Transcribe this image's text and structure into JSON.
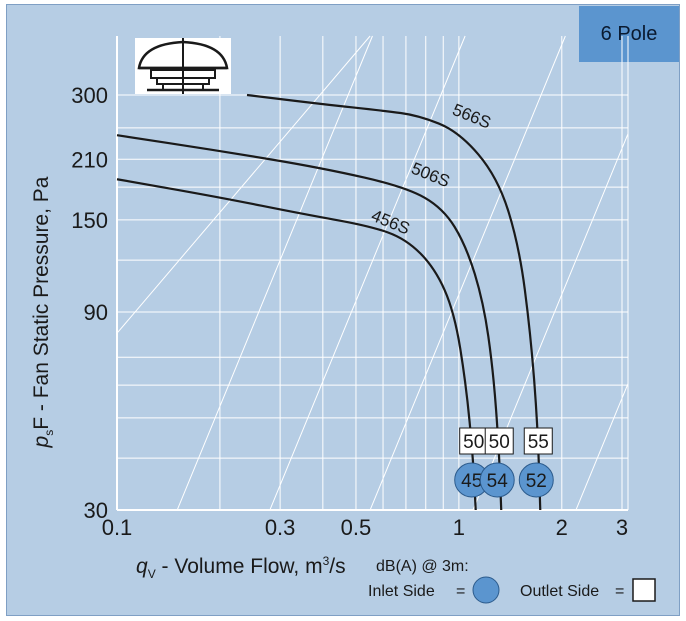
{
  "badge": "6 Pole",
  "chart_data": {
    "type": "line",
    "title": "",
    "xlabel": "q_V - Volume Flow, m³/s",
    "ylabel": "p_sF - Fan Static Pressure, Pa",
    "x_scale": "log",
    "y_scale": "log",
    "xlim": [
      0.1,
      3.3
    ],
    "ylim": [
      30,
      450
    ],
    "x_ticks": [
      "0.1",
      "0.3",
      "0.5",
      "1",
      "2",
      "3"
    ],
    "y_ticks": [
      "30",
      "90",
      "150",
      "210",
      "300"
    ],
    "series": [
      {
        "name": "456S",
        "inlet_dba": "45",
        "outlet_dba": "50",
        "x": [
          0.1,
          0.2,
          0.35,
          0.55,
          0.7,
          0.85,
          0.97,
          1.05,
          1.1,
          1.12
        ],
        "y": [
          188,
          170,
          155,
          145,
          135,
          115,
          90,
          60,
          40,
          30
        ]
      },
      {
        "name": "506S",
        "inlet_dba": "54",
        "outlet_dba": "50",
        "x": [
          0.1,
          0.2,
          0.4,
          0.7,
          0.9,
          1.05,
          1.18,
          1.26,
          1.31,
          1.33
        ],
        "y": [
          240,
          220,
          200,
          180,
          160,
          130,
          95,
          65,
          42,
          30
        ]
      },
      {
        "name": "566S",
        "inlet_dba": "52",
        "outlet_dba": "55",
        "x": [
          0.24,
          0.4,
          0.6,
          0.76,
          1.0,
          1.3,
          1.5,
          1.62,
          1.7,
          1.73
        ],
        "y": [
          300,
          285,
          275,
          268,
          245,
          190,
          130,
          80,
          48,
          30
        ]
      }
    ],
    "grid": "on"
  },
  "footer": {
    "note": "dB(A) @ 3m:",
    "inlet_label": "Inlet Side",
    "outlet_label": "Outlet  Side",
    "equals": "="
  },
  "colors": {
    "background": "#b6cde4",
    "badge": "#5b95cf",
    "inlet_marker": "#5b95cf",
    "curves": "#1a1a1a",
    "grid": "#ffffff"
  }
}
